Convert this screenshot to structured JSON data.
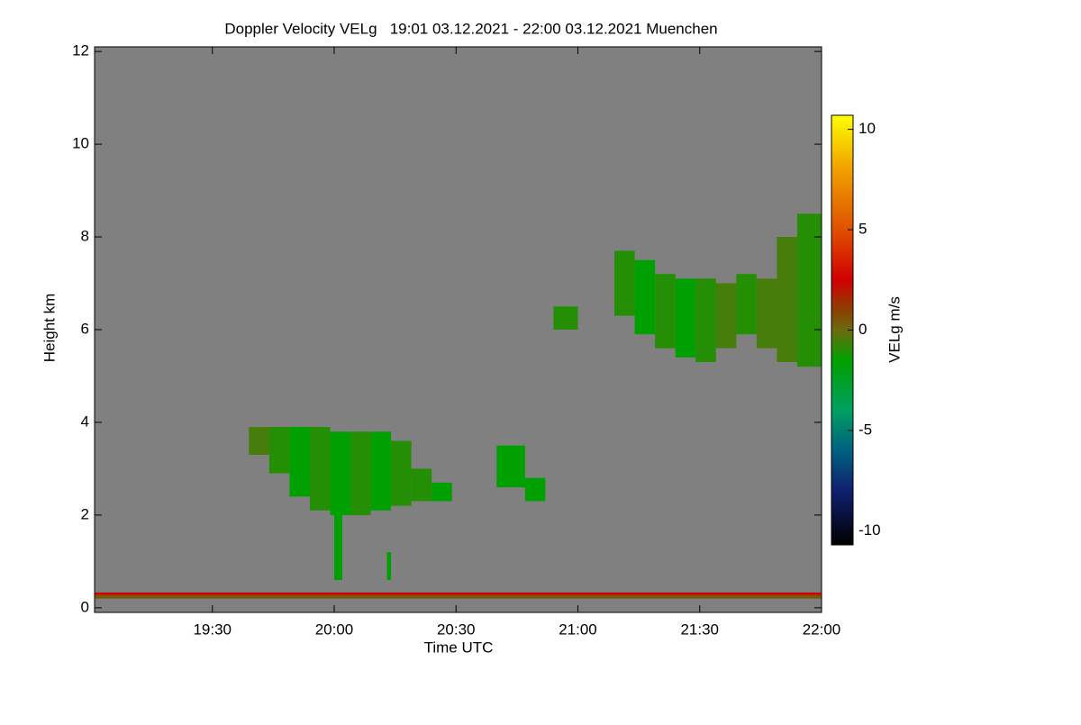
{
  "chart_data": {
    "type": "heatmap",
    "title": "Doppler Velocity VELg   19:01 03.12.2021 - 22:00 03.12.2021 Muenchen",
    "xlabel": "Time UTC",
    "ylabel": "Height km",
    "colorbar_label": "VELg m/s",
    "xlim": [
      "19:01",
      "22:00"
    ],
    "xticks": [
      "19:30",
      "20:00",
      "20:30",
      "21:00",
      "21:30",
      "22:00"
    ],
    "ylim": [
      -0.1,
      12.1
    ],
    "yticks": [
      0,
      2,
      4,
      6,
      8,
      10,
      12
    ],
    "clim": [
      -10.7,
      10.7
    ],
    "cticks": [
      -10,
      -5,
      0,
      5,
      10
    ],
    "background": "#808080",
    "colormap": [
      {
        "value": -10.7,
        "color": "#000000"
      },
      {
        "value": -8,
        "color": "#102070"
      },
      {
        "value": -6,
        "color": "#006080"
      },
      {
        "value": -4,
        "color": "#00a060"
      },
      {
        "value": -1.5,
        "color": "#00a000"
      },
      {
        "value": 0,
        "color": "#6b6b10"
      },
      {
        "value": 1,
        "color": "#8b4000"
      },
      {
        "value": 2.5,
        "color": "#d00000"
      },
      {
        "value": 5,
        "color": "#e05000"
      },
      {
        "value": 8,
        "color": "#f0a000"
      },
      {
        "value": 10.7,
        "color": "#ffff00"
      }
    ],
    "cells": {
      "x": [
        "19:39",
        "19:44",
        "19:49",
        "19:54",
        "19:59",
        "20:04",
        "20:09",
        "20:14",
        "20:19",
        "20:24",
        "20:00",
        "20:13",
        "20:40",
        "20:47",
        "20:54",
        "21:09",
        "21:14",
        "21:19",
        "21:24",
        "21:29",
        "21:34",
        "21:39",
        "21:44",
        "21:49",
        "21:54",
        "19:01",
        "19:01"
      ],
      "x2": [
        "19:44",
        "19:49",
        "19:54",
        "19:59",
        "20:04",
        "20:09",
        "20:14",
        "20:19",
        "20:24",
        "20:29",
        "20:02",
        "20:14",
        "20:47",
        "20:52",
        "21:00",
        "21:14",
        "21:19",
        "21:24",
        "21:29",
        "21:34",
        "21:39",
        "21:44",
        "21:49",
        "21:54",
        "22:00",
        "22:00",
        "22:00"
      ],
      "bottom": [
        3.3,
        2.9,
        2.4,
        2.1,
        2.0,
        2.0,
        2.1,
        2.2,
        2.3,
        2.3,
        0.6,
        0.6,
        2.6,
        2.3,
        6.0,
        6.3,
        5.9,
        5.6,
        5.4,
        5.3,
        5.6,
        5.9,
        5.6,
        5.3,
        5.2,
        0.28,
        0.2
      ],
      "top": [
        3.9,
        3.9,
        3.9,
        3.9,
        3.8,
        3.8,
        3.8,
        3.6,
        3.0,
        2.7,
        2.0,
        1.2,
        3.5,
        2.8,
        6.5,
        7.7,
        7.5,
        7.2,
        7.1,
        7.1,
        7.0,
        7.2,
        7.1,
        8.0,
        8.5,
        0.33,
        0.28
      ],
      "values": [
        -0.5,
        -1,
        -1.5,
        -1,
        -1.5,
        -1,
        -1.5,
        -1,
        -1,
        -1.5,
        -1.5,
        -1.5,
        -1.5,
        -1.5,
        -1,
        -1,
        -1.5,
        -1,
        -1.5,
        -1,
        -0.5,
        -1,
        -0.5,
        -0.5,
        -1,
        2.5,
        0.5
      ]
    }
  }
}
